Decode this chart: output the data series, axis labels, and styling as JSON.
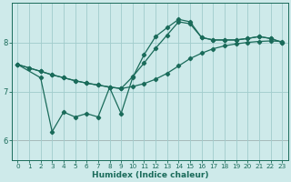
{
  "xlabel": "Humidex (Indice chaleur)",
  "background_color": "#ceeaea",
  "grid_color": "#a0cccc",
  "line_color": "#1a6b5a",
  "xlim": [
    -0.5,
    23.5
  ],
  "ylim": [
    5.6,
    8.8
  ],
  "yticks": [
    6,
    7,
    8
  ],
  "xticks": [
    0,
    1,
    2,
    3,
    4,
    5,
    6,
    7,
    8,
    9,
    10,
    11,
    12,
    13,
    14,
    15,
    16,
    17,
    18,
    19,
    20,
    21,
    22,
    23
  ],
  "red_hline": 6.0,
  "series1_x": [
    0,
    1,
    2,
    3,
    4,
    5,
    6,
    7,
    8,
    9,
    10,
    11,
    12,
    13,
    14,
    15,
    16,
    17,
    18,
    19,
    20,
    21,
    22,
    23
  ],
  "series1_y": [
    7.55,
    7.48,
    7.41,
    7.34,
    7.28,
    7.22,
    7.17,
    7.13,
    7.09,
    7.06,
    7.1,
    7.16,
    7.25,
    7.37,
    7.52,
    7.67,
    7.78,
    7.87,
    7.93,
    7.97,
    8.0,
    8.02,
    8.03,
    8.02
  ],
  "series2_x": [
    0,
    1,
    2,
    3,
    4,
    5,
    6,
    7,
    8,
    9,
    10,
    11,
    12,
    13,
    14,
    15,
    16,
    17,
    18,
    19,
    20,
    21,
    22,
    23
  ],
  "series2_y": [
    7.55,
    7.48,
    7.41,
    7.34,
    7.28,
    7.22,
    7.17,
    7.13,
    7.09,
    7.06,
    7.3,
    7.58,
    7.88,
    8.15,
    8.42,
    8.38,
    8.1,
    8.05,
    8.05,
    8.05,
    8.08,
    8.12,
    8.08,
    8.0
  ],
  "series3_x": [
    0,
    2,
    3,
    4,
    5,
    6,
    7,
    8,
    9,
    10,
    11,
    12,
    13,
    14,
    15,
    16,
    17,
    18,
    19,
    20,
    21,
    22,
    23
  ],
  "series3_y": [
    7.55,
    7.28,
    6.18,
    6.58,
    6.48,
    6.55,
    6.48,
    7.08,
    6.55,
    7.28,
    7.75,
    8.12,
    8.3,
    8.47,
    8.42,
    8.1,
    8.05,
    8.05,
    8.05,
    8.08,
    8.12,
    8.08,
    8.0
  ]
}
